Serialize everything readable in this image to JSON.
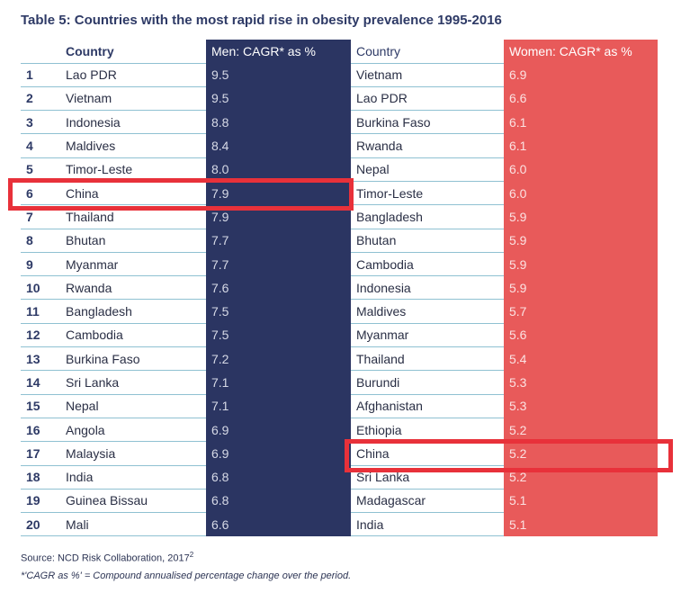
{
  "title": "Table 5: Countries with the most rapid rise in obesity prevalence 1995-2016",
  "headers": {
    "rank": "",
    "men_country": "Country",
    "men_value": "Men: CAGR* as %",
    "women_country": "Country",
    "women_value": "Women: CAGR* as %"
  },
  "rows": [
    {
      "rank": "1",
      "men_country": "Lao PDR",
      "men_value": "9.5",
      "women_country": "Vietnam",
      "women_value": "6.9"
    },
    {
      "rank": "2",
      "men_country": "Vietnam",
      "men_value": "9.5",
      "women_country": "Lao PDR",
      "women_value": "6.6"
    },
    {
      "rank": "3",
      "men_country": "Indonesia",
      "men_value": "8.8",
      "women_country": "Burkina Faso",
      "women_value": "6.1"
    },
    {
      "rank": "4",
      "men_country": "Maldives",
      "men_value": "8.4",
      "women_country": "Rwanda",
      "women_value": "6.1"
    },
    {
      "rank": "5",
      "men_country": "Timor-Leste",
      "men_value": "8.0",
      "women_country": "Nepal",
      "women_value": "6.0"
    },
    {
      "rank": "6",
      "men_country": "China",
      "men_value": "7.9",
      "women_country": "Timor-Leste",
      "women_value": "6.0"
    },
    {
      "rank": "7",
      "men_country": "Thailand",
      "men_value": "7.9",
      "women_country": "Bangladesh",
      "women_value": "5.9"
    },
    {
      "rank": "8",
      "men_country": "Bhutan",
      "men_value": "7.7",
      "women_country": "Bhutan",
      "women_value": "5.9"
    },
    {
      "rank": "9",
      "men_country": "Myanmar",
      "men_value": "7.7",
      "women_country": "Cambodia",
      "women_value": "5.9"
    },
    {
      "rank": "10",
      "men_country": "Rwanda",
      "men_value": "7.6",
      "women_country": "Indonesia",
      "women_value": "5.9"
    },
    {
      "rank": "11",
      "men_country": "Bangladesh",
      "men_value": "7.5",
      "women_country": "Maldives",
      "women_value": "5.7"
    },
    {
      "rank": "12",
      "men_country": "Cambodia",
      "men_value": "7.5",
      "women_country": "Myanmar",
      "women_value": "5.6"
    },
    {
      "rank": "13",
      "men_country": "Burkina Faso",
      "men_value": "7.2",
      "women_country": "Thailand",
      "women_value": "5.4"
    },
    {
      "rank": "14",
      "men_country": "Sri Lanka",
      "men_value": "7.1",
      "women_country": "Burundi",
      "women_value": "5.3"
    },
    {
      "rank": "15",
      "men_country": "Nepal",
      "men_value": "7.1",
      "women_country": "Afghanistan",
      "women_value": "5.3"
    },
    {
      "rank": "16",
      "men_country": "Angola",
      "men_value": "6.9",
      "women_country": "Ethiopia",
      "women_value": "5.2"
    },
    {
      "rank": "17",
      "men_country": "Malaysia",
      "men_value": "6.9",
      "women_country": "China",
      "women_value": "5.2"
    },
    {
      "rank": "18",
      "men_country": "India",
      "men_value": "6.8",
      "women_country": "Sri Lanka",
      "women_value": "5.2"
    },
    {
      "rank": "19",
      "men_country": "Guinea Bissau",
      "men_value": "6.8",
      "women_country": "Madagascar",
      "women_value": "5.1"
    },
    {
      "rank": "20",
      "men_country": "Mali",
      "men_value": "6.6",
      "women_country": "India",
      "women_value": "5.1"
    }
  ],
  "source": {
    "text": "Source: NCD Risk Collaboration, 2017",
    "ref": "2"
  },
  "footnote": "*'CAGR as %' = Compound annualised percentage change over the period.",
  "colors": {
    "men_column": "#2b3562",
    "women_column": "#e85a5a",
    "highlight_box": "#e8313a",
    "title": "#2e3a66"
  }
}
